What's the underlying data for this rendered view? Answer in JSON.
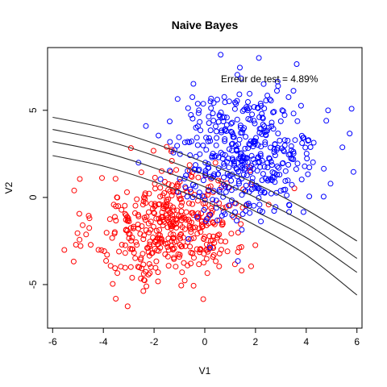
{
  "chart_data": {
    "type": "scatter",
    "title": "Naive Bayes",
    "xlabel": "V1",
    "ylabel": "V2",
    "xlim": [
      -6.2,
      6.2
    ],
    "ylim": [
      -7.5,
      8.6
    ],
    "x_ticks": [
      -6,
      -4,
      -2,
      0,
      2,
      4,
      6
    ],
    "y_ticks": [
      -5,
      0,
      5
    ],
    "annotation": "Erreur de test = 4.89%",
    "grid": false,
    "series": [
      {
        "color": "#0000ff",
        "marker": "open-circle"
      },
      {
        "color": "#ff0000",
        "marker": "open-circle"
      }
    ],
    "boundary_curves": [
      {
        "x": [
          -6,
          -4,
          -2,
          0,
          2,
          4,
          6
        ],
        "y": [
          2.4,
          1.8,
          0.9,
          -0.2,
          -1.6,
          -3.3,
          -5.6
        ]
      },
      {
        "x": [
          -6,
          -4,
          -2,
          0,
          2,
          4,
          6
        ],
        "y": [
          3.2,
          2.6,
          1.7,
          0.6,
          -0.8,
          -2.3,
          -4.3
        ]
      },
      {
        "x": [
          -6,
          -4,
          -2,
          0,
          2,
          4,
          6
        ],
        "y": [
          3.9,
          3.3,
          2.4,
          1.3,
          0.0,
          -1.5,
          -3.5
        ]
      },
      {
        "x": [
          -6,
          -4,
          -2,
          0,
          2,
          4,
          6
        ],
        "y": [
          4.6,
          4.0,
          3.1,
          2.0,
          0.8,
          -0.7,
          -2.5
        ]
      }
    ]
  }
}
